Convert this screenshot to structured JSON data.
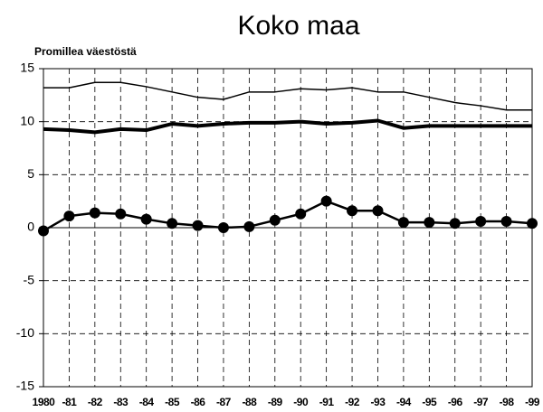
{
  "chart_data": {
    "type": "line",
    "title": "Koko maa",
    "y_label": "Promillea väestöstä",
    "categories": [
      "1980",
      "-81",
      "-82",
      "-83",
      "-84",
      "-85",
      "-86",
      "-87",
      "-88",
      "-89",
      "-90",
      "-91",
      "-92",
      "-93",
      "-94",
      "-95",
      "-96",
      "-97",
      "-98",
      "-99"
    ],
    "series": [
      {
        "color": "#000000",
        "line_width": 1.5,
        "marker": false,
        "values": [
          13.2,
          13.2,
          13.7,
          13.7,
          13.3,
          12.8,
          12.3,
          12.1,
          12.8,
          12.8,
          13.1,
          13.0,
          13.2,
          12.8,
          12.8,
          12.3,
          11.8,
          11.5,
          11.1,
          11.1
        ]
      },
      {
        "color": "#000000",
        "line_width": 4,
        "marker": false,
        "values": [
          9.3,
          9.2,
          9.0,
          9.3,
          9.2,
          9.8,
          9.6,
          9.8,
          9.9,
          9.9,
          10.0,
          9.8,
          9.9,
          10.1,
          9.4,
          9.6,
          9.6,
          9.6,
          9.6,
          9.6
        ]
      },
      {
        "color": "#000000",
        "line_width": 2.5,
        "marker": true,
        "values": [
          -0.3,
          1.1,
          1.4,
          1.3,
          0.8,
          0.4,
          0.2,
          0.0,
          0.1,
          0.7,
          1.3,
          2.5,
          1.6,
          1.6,
          0.5,
          0.5,
          0.4,
          0.6,
          0.6,
          0.4
        ]
      }
    ],
    "ylim": [
      -15,
      15
    ],
    "yticks": [
      -15,
      -10,
      -5,
      0,
      5,
      10,
      15
    ],
    "grid": true
  }
}
